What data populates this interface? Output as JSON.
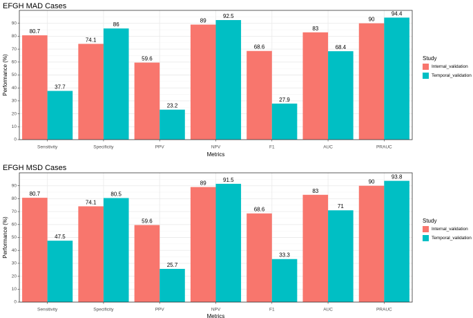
{
  "colors": {
    "internal": "#F8766D",
    "temporal": "#00BFC4",
    "grid_major": "#ebebeb",
    "grid_minor": "#f5f5f5",
    "frame": "#333333"
  },
  "chart_data": [
    {
      "type": "bar",
      "title": "EFGH MAD Cases",
      "xlabel": "Metrics",
      "ylabel": "Performance (%)",
      "ylim": [
        0,
        100
      ],
      "yticks": [
        0,
        10,
        20,
        30,
        40,
        50,
        60,
        70,
        80,
        90
      ],
      "categories": [
        "Sensitivity",
        "Specificity",
        "PPV",
        "NPV",
        "F1",
        "AUC",
        "PRAUC"
      ],
      "series": [
        {
          "name": "Internal_validation",
          "values": [
            80.7,
            74.1,
            59.6,
            89,
            68.6,
            83,
            90
          ],
          "labels": [
            "80.7",
            "74.1",
            "59.6",
            "89",
            "68.6",
            "83",
            "90"
          ]
        },
        {
          "name": "Temporal_validation",
          "values": [
            37.7,
            86,
            23.2,
            92.5,
            27.9,
            68.4,
            94.4
          ],
          "labels": [
            "37.7",
            "86",
            "23.2",
            "92.5",
            "27.9",
            "68.4",
            "94.4"
          ]
        }
      ],
      "legend_title": "Study",
      "legend_position": "right"
    },
    {
      "type": "bar",
      "title": "EFGH MSD Cases",
      "xlabel": "Metrics",
      "ylabel": "Performance (%)",
      "ylim": [
        0,
        100
      ],
      "yticks": [
        0,
        10,
        20,
        30,
        40,
        50,
        60,
        70,
        80,
        90
      ],
      "categories": [
        "Sensitivity",
        "Specificity",
        "PPV",
        "NPV",
        "F1",
        "AUC",
        "PRAUC"
      ],
      "series": [
        {
          "name": "Internal_validation",
          "values": [
            80.7,
            74.1,
            59.6,
            89,
            68.6,
            83,
            90
          ],
          "labels": [
            "80.7",
            "74.1",
            "59.6",
            "89",
            "68.6",
            "83",
            "90"
          ]
        },
        {
          "name": "Temporal_validation",
          "values": [
            47.5,
            80.5,
            25.7,
            91.5,
            33.3,
            71,
            93.8
          ],
          "labels": [
            "47.5",
            "80.5",
            "25.7",
            "91.5",
            "33.3",
            "71",
            "93.8"
          ]
        }
      ],
      "legend_title": "Study",
      "legend_position": "right"
    }
  ]
}
